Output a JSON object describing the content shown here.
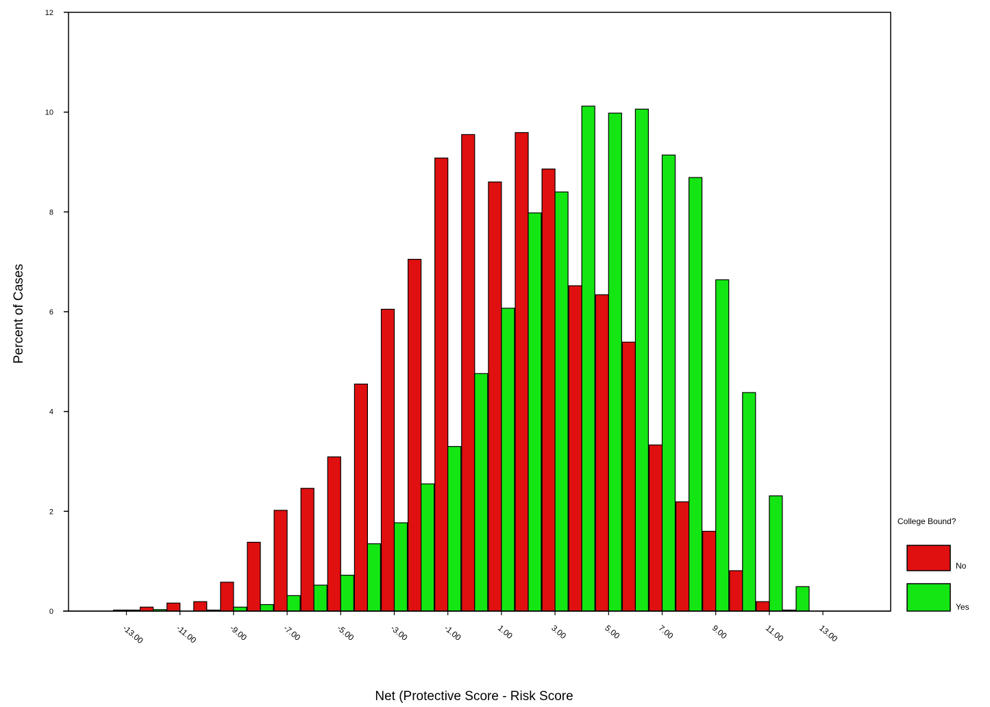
{
  "chart_data": {
    "type": "bar",
    "xlabel": "Net (Protective Score - Risk Score",
    "ylabel": "Percent of Cases",
    "ylim": [
      0,
      12
    ],
    "yticks": [
      0,
      2,
      4,
      6,
      8,
      10,
      12
    ],
    "y_tick_labels": [
      "0",
      "2",
      "4",
      "6",
      "8",
      "10",
      "12"
    ],
    "categories": [
      -13,
      -12,
      -11,
      -10,
      -9,
      -8,
      -7,
      -6,
      -5,
      -4,
      -3,
      -2,
      -1,
      0,
      1,
      2,
      3,
      4,
      5,
      6,
      7,
      8,
      9,
      10,
      11,
      12,
      13
    ],
    "x_tick_labels": [
      {
        "category": -13,
        "label": "-13.00"
      },
      {
        "category": -11,
        "label": "-11.00"
      },
      {
        "category": -9,
        "label": "-9.00"
      },
      {
        "category": -7,
        "label": "-7.00"
      },
      {
        "category": -5,
        "label": "-5.00"
      },
      {
        "category": -3,
        "label": "-3.00"
      },
      {
        "category": -1,
        "label": "-1.00"
      },
      {
        "category": 1,
        "label": "1.00"
      },
      {
        "category": 3,
        "label": "3.00"
      },
      {
        "category": 5,
        "label": "5.00"
      },
      {
        "category": 7,
        "label": "7.00"
      },
      {
        "category": 9,
        "label": "9.00"
      },
      {
        "category": 11,
        "label": "11.00"
      },
      {
        "category": 13,
        "label": "13.00"
      }
    ],
    "series": [
      {
        "name": "No",
        "color": "#e01010",
        "values": [
          0.02,
          0.08,
          0.16,
          0.19,
          0.58,
          1.38,
          2.02,
          2.46,
          3.09,
          4.55,
          6.05,
          7.05,
          9.08,
          9.55,
          8.6,
          9.59,
          8.86,
          6.52,
          6.34,
          5.39,
          3.33,
          2.19,
          1.6,
          0.81,
          0.19,
          0.02,
          0
        ]
      },
      {
        "name": "Yes",
        "color": "#14e614",
        "values": [
          0.02,
          0.03,
          0,
          0.02,
          0.08,
          0.13,
          0.31,
          0.52,
          0.72,
          1.35,
          1.77,
          2.55,
          3.3,
          4.76,
          6.07,
          7.98,
          8.4,
          10.12,
          9.98,
          10.06,
          9.14,
          8.69,
          6.64,
          4.38,
          2.31,
          0.49,
          0
        ]
      }
    ],
    "legend": {
      "title": "College Bound?",
      "position": "right"
    },
    "grid": false
  }
}
